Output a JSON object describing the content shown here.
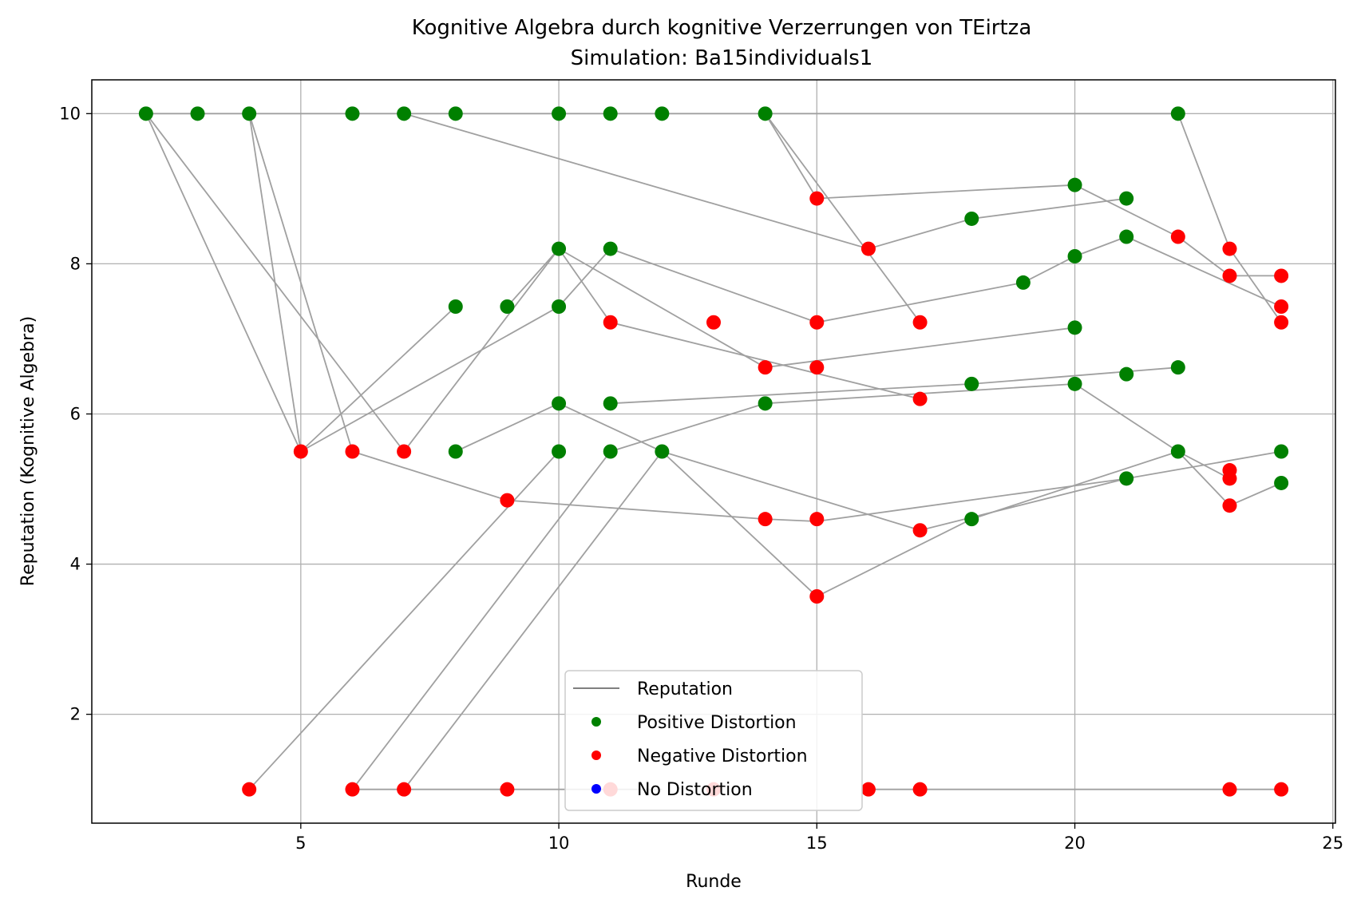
{
  "chart_data": {
    "type": "scatter",
    "title": "Kognitive Algebra durch kognitive Verzerrungen von TEirtza",
    "subtitle": "Simulation: Ba15individuals1",
    "xlabel": "Runde",
    "ylabel": "Reputation (Kognitive Algebra)",
    "xlim": [
      0.95,
      25.05
    ],
    "ylim": [
      0.55,
      10.45
    ],
    "xticks": [
      5,
      10,
      15,
      20,
      25
    ],
    "yticks": [
      2,
      4,
      6,
      8,
      10
    ],
    "grid": true,
    "legend_position": "bottom-center",
    "legend": [
      {
        "label": "Reputation",
        "kind": "line",
        "color": "#808080"
      },
      {
        "label": "Positive Distortion",
        "kind": "marker",
        "color": "#008000"
      },
      {
        "label": "Negative Distortion",
        "kind": "marker",
        "color": "#ff0000"
      },
      {
        "label": "No Distortion",
        "kind": "marker",
        "color": "#0000ff"
      }
    ],
    "line_color": "#a0a0a0",
    "lines": [
      [
        [
          2,
          10
        ],
        [
          3,
          10
        ],
        [
          4,
          10
        ],
        [
          6,
          10
        ],
        [
          7,
          10
        ],
        [
          8,
          10
        ],
        [
          10,
          10
        ],
        [
          11,
          10
        ],
        [
          12,
          10
        ],
        [
          14,
          10
        ],
        [
          22,
          10
        ]
      ],
      [
        [
          2,
          10
        ],
        [
          5,
          5.5
        ]
      ],
      [
        [
          2,
          10
        ],
        [
          7,
          5.5
        ]
      ],
      [
        [
          4,
          10
        ],
        [
          5,
          5.5
        ]
      ],
      [
        [
          4,
          10
        ],
        [
          6,
          5.5
        ]
      ],
      [
        [
          7,
          10
        ],
        [
          16,
          8.2
        ],
        [
          18,
          8.6
        ],
        [
          21,
          8.87
        ]
      ],
      [
        [
          14,
          10
        ],
        [
          15,
          8.87
        ],
        [
          20,
          9.05
        ],
        [
          22,
          8.36
        ],
        [
          23,
          7.84
        ],
        [
          24,
          7.84
        ]
      ],
      [
        [
          14,
          10
        ],
        [
          17,
          7.22
        ]
      ],
      [
        [
          22,
          10
        ],
        [
          23,
          8.2
        ],
        [
          24,
          7.22
        ]
      ],
      [
        [
          5,
          5.5
        ],
        [
          8,
          7.43
        ]
      ],
      [
        [
          5,
          5.5
        ],
        [
          10,
          7.43
        ],
        [
          11,
          8.2
        ],
        [
          15,
          7.22
        ],
        [
          19,
          7.75
        ],
        [
          20,
          8.1
        ],
        [
          21,
          8.36
        ],
        [
          24,
          7.43
        ]
      ],
      [
        [
          7,
          5.5
        ],
        [
          10,
          8.2
        ],
        [
          11,
          7.22
        ],
        [
          17,
          6.2
        ]
      ],
      [
        [
          10,
          8.2
        ],
        [
          14,
          6.62
        ],
        [
          20,
          7.15
        ]
      ],
      [
        [
          10,
          8.2
        ],
        [
          9,
          7.43
        ]
      ],
      [
        [
          11,
          6.14
        ],
        [
          18,
          6.4
        ],
        [
          22,
          6.62
        ]
      ],
      [
        [
          11,
          5.5
        ],
        [
          14,
          6.14
        ],
        [
          20,
          6.4
        ],
        [
          22,
          5.5
        ],
        [
          23,
          5.14
        ]
      ],
      [
        [
          8,
          5.5
        ],
        [
          10,
          6.14
        ],
        [
          12,
          5.5
        ],
        [
          15,
          3.57
        ],
        [
          18,
          4.6
        ],
        [
          22,
          5.5
        ],
        [
          23,
          4.78
        ],
        [
          24,
          5.08
        ]
      ],
      [
        [
          6,
          5.5
        ],
        [
          9,
          4.85
        ],
        [
          14,
          4.6
        ],
        [
          15,
          4.57
        ],
        [
          21,
          5.14
        ],
        [
          24,
          5.5
        ]
      ],
      [
        [
          4,
          1
        ],
        [
          10,
          5.5
        ]
      ],
      [
        [
          6,
          1
        ],
        [
          11,
          5.5
        ]
      ],
      [
        [
          7,
          1
        ],
        [
          12,
          5.5
        ]
      ],
      [
        [
          6,
          1
        ],
        [
          12,
          1
        ]
      ],
      [
        [
          12,
          5.5
        ],
        [
          17,
          4.45
        ],
        [
          21,
          5.14
        ]
      ],
      [
        [
          16,
          1
        ],
        [
          24,
          1
        ]
      ]
    ],
    "points": [
      {
        "x": 2,
        "y": 10,
        "c": "pos"
      },
      {
        "x": 3,
        "y": 10,
        "c": "pos"
      },
      {
        "x": 4,
        "y": 10,
        "c": "pos"
      },
      {
        "x": 6,
        "y": 10,
        "c": "pos"
      },
      {
        "x": 7,
        "y": 10,
        "c": "pos"
      },
      {
        "x": 8,
        "y": 10,
        "c": "pos"
      },
      {
        "x": 10,
        "y": 10,
        "c": "pos"
      },
      {
        "x": 11,
        "y": 10,
        "c": "pos"
      },
      {
        "x": 12,
        "y": 10,
        "c": "pos"
      },
      {
        "x": 14,
        "y": 10,
        "c": "pos"
      },
      {
        "x": 22,
        "y": 10,
        "c": "pos"
      },
      {
        "x": 20,
        "y": 9.05,
        "c": "pos"
      },
      {
        "x": 21,
        "y": 8.87,
        "c": "pos"
      },
      {
        "x": 18,
        "y": 8.6,
        "c": "pos"
      },
      {
        "x": 21,
        "y": 8.36,
        "c": "pos"
      },
      {
        "x": 20,
        "y": 8.1,
        "c": "pos"
      },
      {
        "x": 19,
        "y": 7.75,
        "c": "pos"
      },
      {
        "x": 10,
        "y": 8.2,
        "c": "pos"
      },
      {
        "x": 11,
        "y": 8.2,
        "c": "pos"
      },
      {
        "x": 8,
        "y": 7.43,
        "c": "pos"
      },
      {
        "x": 9,
        "y": 7.43,
        "c": "pos"
      },
      {
        "x": 10,
        "y": 7.43,
        "c": "pos"
      },
      {
        "x": 20,
        "y": 7.15,
        "c": "pos"
      },
      {
        "x": 22,
        "y": 6.62,
        "c": "pos"
      },
      {
        "x": 21,
        "y": 6.53,
        "c": "pos"
      },
      {
        "x": 18,
        "y": 6.4,
        "c": "pos"
      },
      {
        "x": 20,
        "y": 6.4,
        "c": "pos"
      },
      {
        "x": 10,
        "y": 6.14,
        "c": "pos"
      },
      {
        "x": 11,
        "y": 6.14,
        "c": "pos"
      },
      {
        "x": 14,
        "y": 6.14,
        "c": "pos"
      },
      {
        "x": 8,
        "y": 5.5,
        "c": "pos"
      },
      {
        "x": 10,
        "y": 5.5,
        "c": "pos"
      },
      {
        "x": 11,
        "y": 5.5,
        "c": "pos"
      },
      {
        "x": 12,
        "y": 5.5,
        "c": "pos"
      },
      {
        "x": 22,
        "y": 5.5,
        "c": "pos"
      },
      {
        "x": 24,
        "y": 5.5,
        "c": "pos"
      },
      {
        "x": 21,
        "y": 5.14,
        "c": "pos"
      },
      {
        "x": 24,
        "y": 5.08,
        "c": "pos"
      },
      {
        "x": 18,
        "y": 4.6,
        "c": "pos"
      },
      {
        "x": 15,
        "y": 8.87,
        "c": "neg"
      },
      {
        "x": 16,
        "y": 8.2,
        "c": "neg"
      },
      {
        "x": 22,
        "y": 8.36,
        "c": "neg"
      },
      {
        "x": 23,
        "y": 8.2,
        "c": "neg"
      },
      {
        "x": 23,
        "y": 7.84,
        "c": "neg"
      },
      {
        "x": 24,
        "y": 7.84,
        "c": "neg"
      },
      {
        "x": 24,
        "y": 7.43,
        "c": "neg"
      },
      {
        "x": 24,
        "y": 7.22,
        "c": "neg"
      },
      {
        "x": 11,
        "y": 7.22,
        "c": "neg"
      },
      {
        "x": 13,
        "y": 7.22,
        "c": "neg"
      },
      {
        "x": 15,
        "y": 7.22,
        "c": "neg"
      },
      {
        "x": 17,
        "y": 7.22,
        "c": "neg"
      },
      {
        "x": 14,
        "y": 6.62,
        "c": "neg"
      },
      {
        "x": 15,
        "y": 6.62,
        "c": "neg"
      },
      {
        "x": 17,
        "y": 6.2,
        "c": "neg"
      },
      {
        "x": 5,
        "y": 5.5,
        "c": "neg"
      },
      {
        "x": 6,
        "y": 5.5,
        "c": "neg"
      },
      {
        "x": 7,
        "y": 5.5,
        "c": "neg"
      },
      {
        "x": 23,
        "y": 5.25,
        "c": "neg"
      },
      {
        "x": 23,
        "y": 5.14,
        "c": "neg"
      },
      {
        "x": 9,
        "y": 4.85,
        "c": "neg"
      },
      {
        "x": 23,
        "y": 4.78,
        "c": "neg"
      },
      {
        "x": 14,
        "y": 4.6,
        "c": "neg"
      },
      {
        "x": 15,
        "y": 4.6,
        "c": "neg"
      },
      {
        "x": 17,
        "y": 4.45,
        "c": "neg"
      },
      {
        "x": 15,
        "y": 3.57,
        "c": "neg"
      },
      {
        "x": 4,
        "y": 1,
        "c": "neg"
      },
      {
        "x": 6,
        "y": 1,
        "c": "neg"
      },
      {
        "x": 7,
        "y": 1,
        "c": "neg"
      },
      {
        "x": 9,
        "y": 1,
        "c": "neg"
      },
      {
        "x": 11,
        "y": 1,
        "c": "neg"
      },
      {
        "x": 13,
        "y": 1,
        "c": "neg"
      },
      {
        "x": 16,
        "y": 1,
        "c": "neg"
      },
      {
        "x": 17,
        "y": 1,
        "c": "neg"
      },
      {
        "x": 23,
        "y": 1,
        "c": "neg"
      },
      {
        "x": 24,
        "y": 1,
        "c": "neg"
      }
    ],
    "colors": {
      "pos": "#008000",
      "neg": "#ff0000",
      "none": "#0000ff"
    }
  }
}
